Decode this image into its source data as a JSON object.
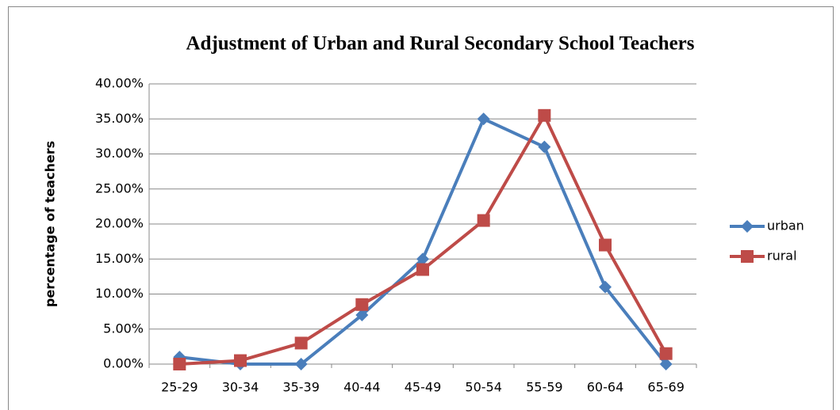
{
  "chart_data": {
    "type": "line",
    "title": "Adjustment of Urban and Rural Secondary School Teachers",
    "y_label": "percentage of teachers",
    "categories": [
      "25-29",
      "30-34",
      "35-39",
      "40-44",
      "45-49",
      "50-54",
      "55-59",
      "60-64",
      "65-69"
    ],
    "series": [
      {
        "name": "urban",
        "color": "#4a7ebb",
        "marker": "diamond",
        "values": [
          1,
          0,
          0,
          7,
          15,
          35,
          31,
          11,
          0
        ]
      },
      {
        "name": "rural",
        "color": "#be4b48",
        "marker": "square",
        "values": [
          0,
          0.5,
          3,
          8.5,
          13.5,
          20.5,
          35.5,
          17,
          1.5
        ]
      }
    ],
    "ylim": [
      0,
      40
    ],
    "yticks": [
      {
        "value": 0,
        "label": "0.00%"
      },
      {
        "value": 5,
        "label": "5.00%"
      },
      {
        "value": 10,
        "label": "10.00%"
      },
      {
        "value": 15,
        "label": "15.00%"
      },
      {
        "value": 20,
        "label": "20.00%"
      },
      {
        "value": 25,
        "label": "25.00%"
      },
      {
        "value": 30,
        "label": "30.00%"
      },
      {
        "value": 35,
        "label": "35.00%"
      },
      {
        "value": 40,
        "label": "40.00%"
      }
    ],
    "grid": true,
    "legend": "right"
  }
}
